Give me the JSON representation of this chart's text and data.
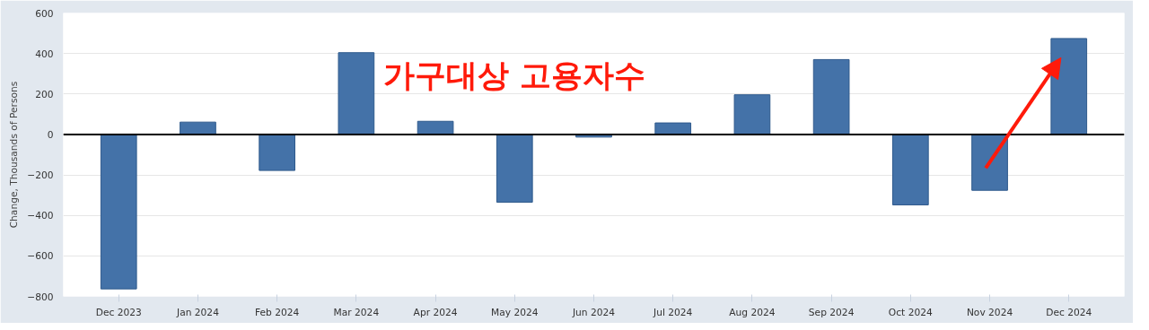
{
  "chart_data": {
    "type": "bar",
    "ylabel": "Change, Thousands of Persons",
    "categories": [
      "Dec 2023",
      "Jan 2024",
      "Feb 2024",
      "Mar 2024",
      "Apr 2024",
      "May 2024",
      "Jun 2024",
      "Jul 2024",
      "Aug 2024",
      "Sep 2024",
      "Oct 2024",
      "Nov 2024",
      "Dec 2024"
    ],
    "values": [
      -763,
      61,
      -178,
      404,
      65,
      -335,
      -13,
      57,
      196,
      370,
      -348,
      -276,
      474
    ],
    "color": "#4472a8",
    "ylim": [
      -800,
      600
    ],
    "yticks": [
      -800,
      -600,
      -400,
      -200,
      0,
      200,
      400,
      600
    ],
    "grid": "y",
    "ref_lines": [
      {
        "axis": "y",
        "value": 0,
        "color": "#000000"
      }
    ],
    "annotations": [
      "가구대상 고용자수"
    ]
  }
}
